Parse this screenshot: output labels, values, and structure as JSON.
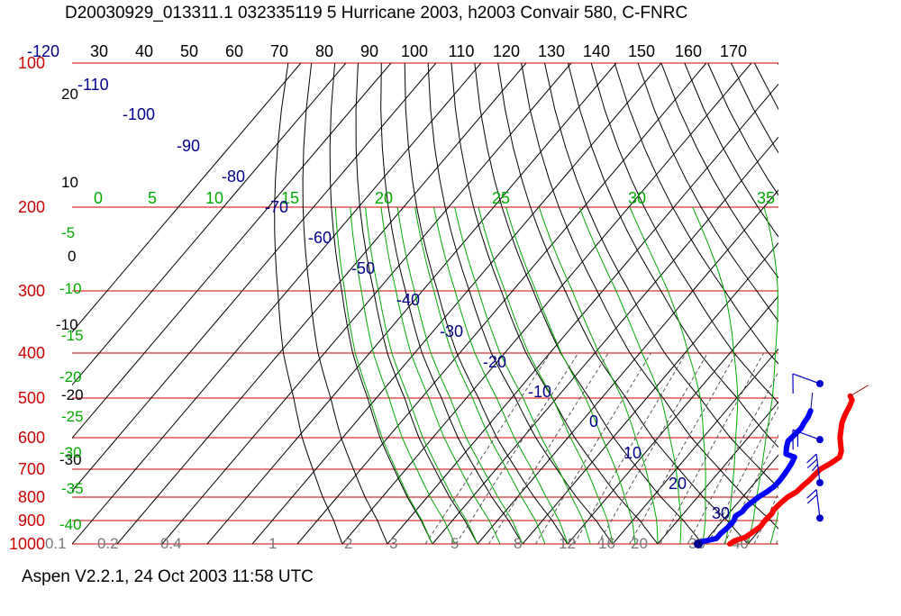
{
  "title": "D20030929_013311.1 032335119 5 Hurricane 2003, h2003 Convair 580, C-FNRC",
  "footer": "Aspen V2.2.1, 24 Oct 2003  11:58 UTC",
  "colors": {
    "isobar": "#cc0000",
    "isotherm": "#000000",
    "dry_adiabat": "#000000",
    "moist_adiabat": "#00aa00",
    "mixing_ratio": "#555555",
    "dewpoint_label": "#00008b",
    "theta_e_label": "#00aa00",
    "temperature_trace": "#ff0000",
    "dewpoint_trace": "#0000ff",
    "wind_barb": "#0000cc"
  },
  "chart_data": {
    "type": "skew-t",
    "pressure_levels_hPa": [
      100,
      200,
      300,
      400,
      500,
      600,
      700,
      800,
      900,
      1000
    ],
    "top_temperature_labels": [
      -120,
      30,
      40,
      50,
      60,
      70,
      80,
      90,
      100,
      110,
      120,
      130,
      140,
      150,
      160,
      170
    ],
    "left_temperature_labels": [
      20,
      10,
      0,
      -10,
      -20,
      -30
    ],
    "theta_e_labels": [
      0,
      5,
      10,
      15,
      20,
      25,
      30,
      35
    ],
    "left_green_labels": [
      -5,
      -10,
      -15,
      -20,
      -25,
      -30,
      -35,
      -40
    ],
    "diagonal_temperature_labels": [
      -110,
      -100,
      -90,
      -80,
      -70,
      -60,
      -50,
      -40,
      -30,
      -20,
      -10,
      0,
      10,
      20,
      30
    ],
    "mixing_ratio_labels": [
      "0.1",
      "0.2",
      "0.4",
      "1",
      "2",
      "3",
      "5",
      "8",
      "12",
      "16",
      "20",
      "30",
      "40"
    ],
    "temperature_profile": [
      {
        "p": 1000,
        "t": 26.0
      },
      {
        "p": 985,
        "t": 26.5
      },
      {
        "p": 970,
        "t": 28.2
      },
      {
        "p": 950,
        "t": 28.8
      },
      {
        "p": 925,
        "t": 29.5
      },
      {
        "p": 900,
        "t": 29.4
      },
      {
        "p": 870,
        "t": 29.6
      },
      {
        "p": 850,
        "t": 29.3
      },
      {
        "p": 820,
        "t": 29.6
      },
      {
        "p": 800,
        "t": 30.0
      },
      {
        "p": 780,
        "t": 31.0
      },
      {
        "p": 760,
        "t": 31.2
      },
      {
        "p": 740,
        "t": 31.6
      },
      {
        "p": 720,
        "t": 31.8
      },
      {
        "p": 700,
        "t": 32.0
      },
      {
        "p": 680,
        "t": 33.2
      },
      {
        "p": 660,
        "t": 34.0
      },
      {
        "p": 640,
        "t": 33.2
      },
      {
        "p": 620,
        "t": 31.8
      },
      {
        "p": 600,
        "t": 30.4
      },
      {
        "p": 580,
        "t": 29.2
      },
      {
        "p": 560,
        "t": 28.0
      },
      {
        "p": 540,
        "t": 27.2
      },
      {
        "p": 520,
        "t": 26.6
      },
      {
        "p": 505,
        "t": 26.0
      },
      {
        "p": 495,
        "t": 24.8
      }
    ],
    "dewpoint_profile": [
      {
        "p": 1000,
        "t": 19.0
      },
      {
        "p": 990,
        "t": 19.4
      },
      {
        "p": 975,
        "t": 22.0
      },
      {
        "p": 955,
        "t": 22.0
      },
      {
        "p": 930,
        "t": 22.4
      },
      {
        "p": 900,
        "t": 22.5
      },
      {
        "p": 880,
        "t": 22.0
      },
      {
        "p": 860,
        "t": 22.7
      },
      {
        "p": 840,
        "t": 22.6
      },
      {
        "p": 820,
        "t": 23.0
      },
      {
        "p": 800,
        "t": 23.5
      },
      {
        "p": 780,
        "t": 24.4
      },
      {
        "p": 760,
        "t": 25.0
      },
      {
        "p": 740,
        "t": 25.1
      },
      {
        "p": 720,
        "t": 25.0
      },
      {
        "p": 700,
        "t": 24.8
      },
      {
        "p": 680,
        "t": 24.5
      },
      {
        "p": 660,
        "t": 24.0
      },
      {
        "p": 650,
        "t": 21.5
      },
      {
        "p": 630,
        "t": 20.4
      },
      {
        "p": 610,
        "t": 19.5
      },
      {
        "p": 590,
        "t": 19.8
      },
      {
        "p": 575,
        "t": 20.0
      },
      {
        "p": 560,
        "t": 19.6
      },
      {
        "p": 545,
        "t": 19.4
      },
      {
        "p": 530,
        "t": 18.8
      }
    ],
    "wind_barbs": [
      {
        "p": 500,
        "speed_kt": 10
      },
      {
        "p": 650,
        "speed_kt": 15
      },
      {
        "p": 800,
        "speed_kt": 25
      },
      {
        "p": 950,
        "speed_kt": 20
      }
    ],
    "grid": true,
    "legend": "none"
  }
}
